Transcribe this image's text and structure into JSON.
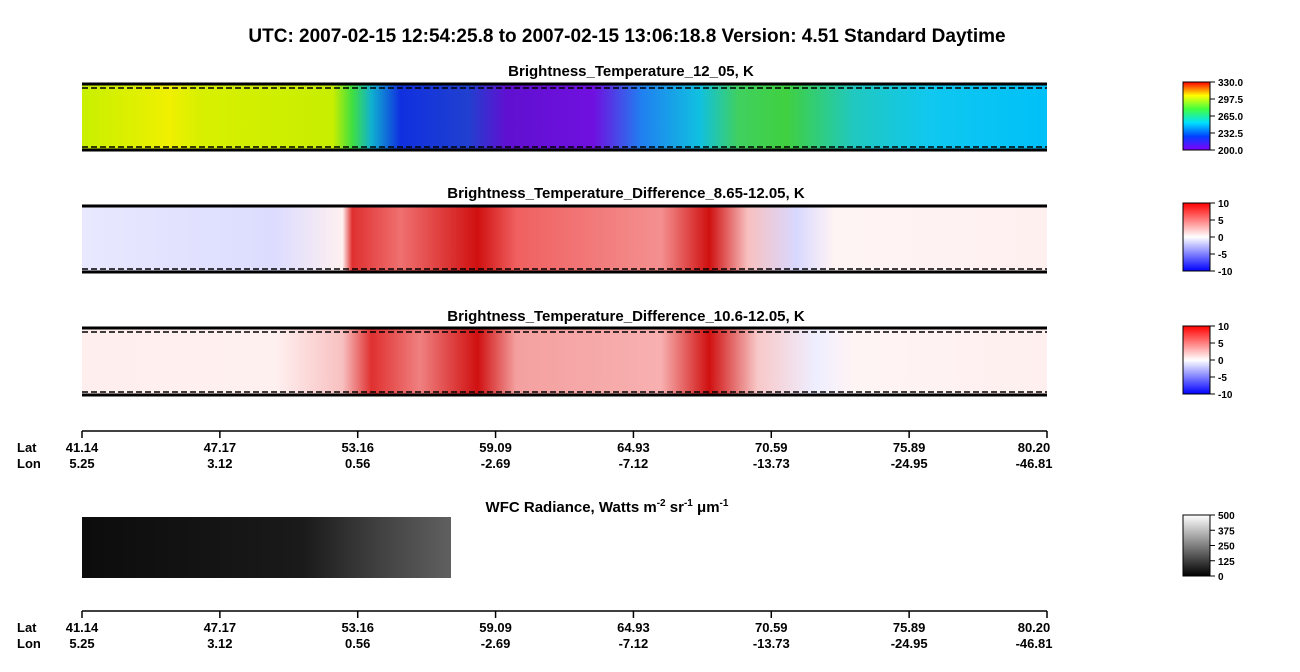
{
  "header": {
    "title": "UTC:  2007-02-15   12:54:25.8  to  2007-02-15   13:06:18.8    Version: 4.51  Standard Daytime"
  },
  "panels": [
    {
      "title": "Brightness_Temperature_12_05, K",
      "colorbar": {
        "lim": [
          200,
          330
        ],
        "ticks": [
          {
            "value": 330,
            "label": "330.0"
          },
          297.5,
          {
            "value": 265,
            "label": "265.0"
          },
          232.5,
          {
            "value": 200,
            "label": "200.0"
          }
        ]
      }
    },
    {
      "title": "Brightness_Temperature_Difference_8.65-12.05, K",
      "colorbar": {
        "lim": [
          -10,
          10
        ],
        "ticks": [
          10,
          5,
          0,
          -5,
          -10
        ]
      }
    },
    {
      "title": "Brightness_Temperature_Difference_10.6-12.05, K",
      "colorbar": {
        "lim": [
          -10,
          10
        ],
        "ticks": [
          10,
          5,
          0,
          -5,
          -10
        ]
      }
    },
    {
      "title_parts": [
        "WFC Radiance, Watts m",
        "-2",
        " sr",
        "-1",
        " μm",
        "-1"
      ],
      "colorbar": {
        "lim": [
          0,
          500
        ],
        "ticks": [
          500,
          375,
          250,
          125,
          0
        ]
      }
    }
  ],
  "axis": {
    "lat_label": "Lat",
    "lon_label": "Lon",
    "lat": [
      "41.14",
      "47.17",
      "53.16",
      "59.09",
      "64.93",
      "70.59",
      "75.89",
      "80.20"
    ],
    "lon": [
      "5.25",
      "3.12",
      "0.56",
      "-2.69",
      "-7.12",
      "-13.73",
      "-24.95",
      "-46.81"
    ]
  }
}
